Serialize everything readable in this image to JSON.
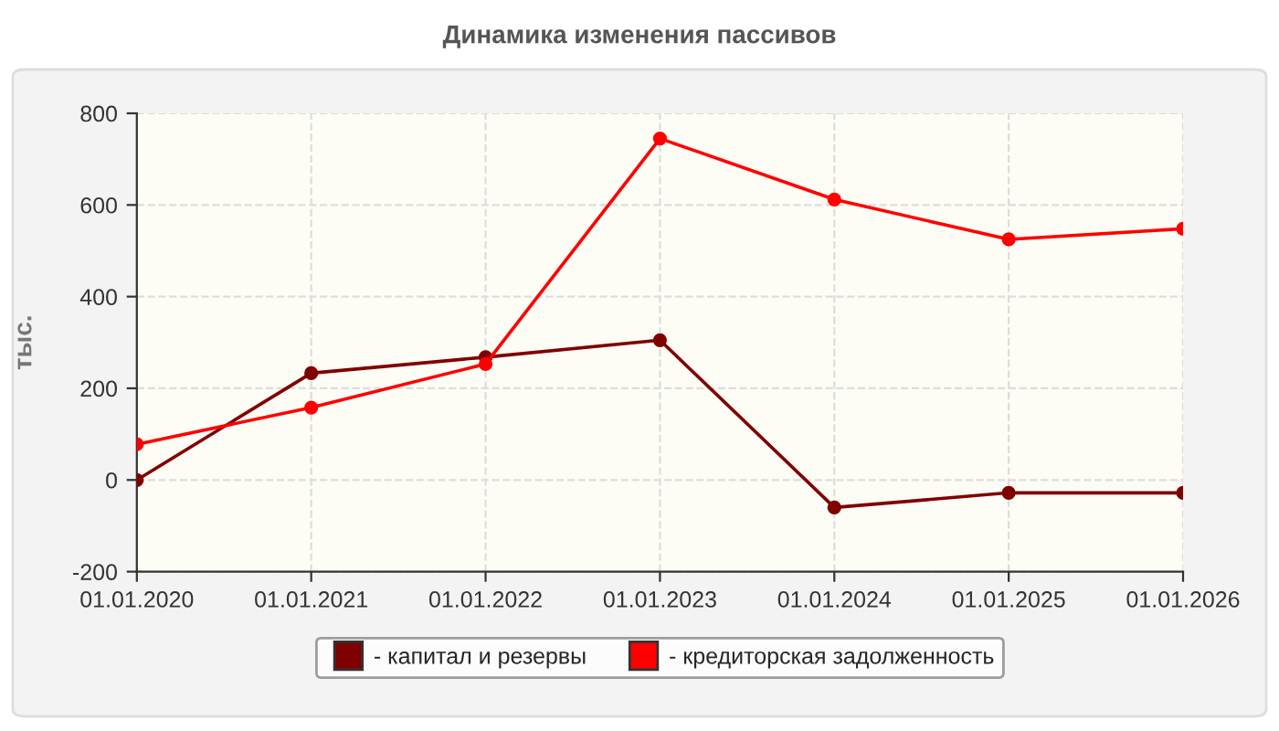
{
  "chart_data": {
    "type": "line",
    "title": "Динамика изменения пассивов",
    "ylabel": "тыс.",
    "categories": [
      "01.01.2020",
      "01.01.2021",
      "01.01.2022",
      "01.01.2023",
      "01.01.2024",
      "01.01.2025",
      "01.01.2026"
    ],
    "series": [
      {
        "name": "- капитал и резервы",
        "color": "#800000",
        "values": [
          0,
          233,
          268,
          305,
          -60,
          -28,
          -28
        ]
      },
      {
        "name": "- кредиторская задолженность",
        "color": "#ff0000",
        "values": [
          78,
          158,
          253,
          745,
          612,
          525,
          548
        ]
      }
    ],
    "ylim": [
      -200,
      800
    ],
    "yticks": [
      -200,
      0,
      200,
      400,
      600,
      800
    ],
    "grid": true,
    "legend": "bottom",
    "marker": "circle",
    "line_style": "solid"
  }
}
